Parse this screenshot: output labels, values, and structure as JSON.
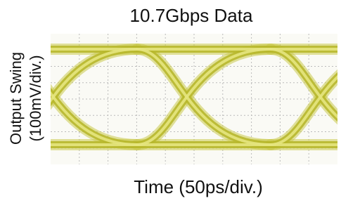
{
  "title": "10.7Gbps Data",
  "y_label": [
    "Output Swing",
    "(100mV/div.)"
  ],
  "x_label": "Time (50ps/div.)"
}
